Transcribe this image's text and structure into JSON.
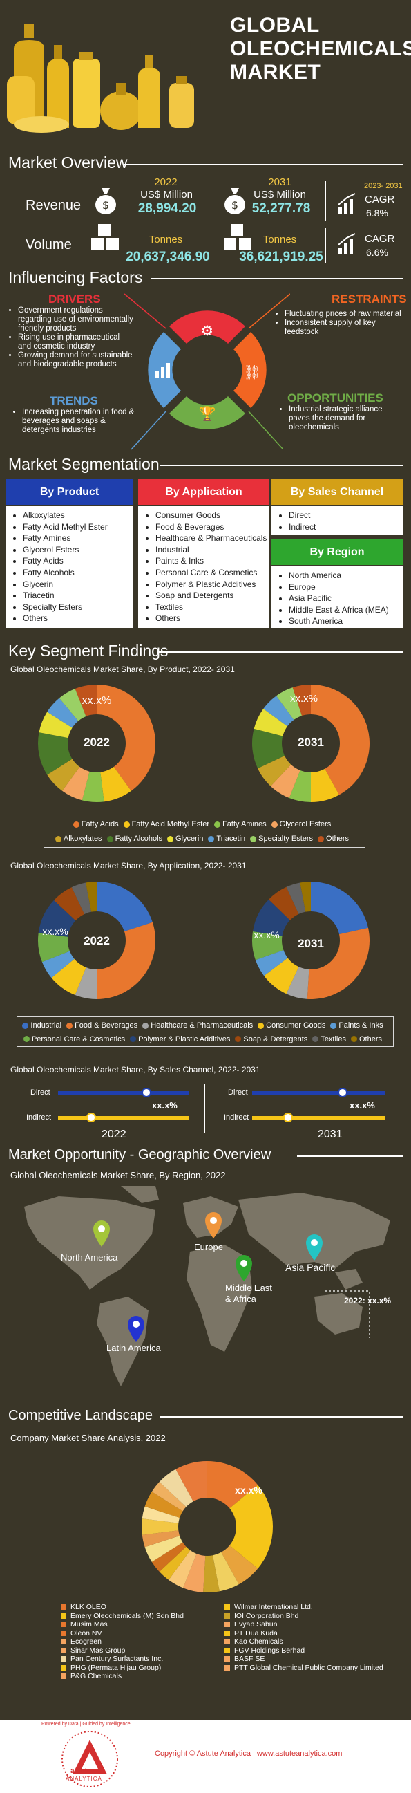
{
  "header": {
    "title_l1": "GLOBAL",
    "title_l2": "OLEOCHEMICALS",
    "title_l3": "MARKET"
  },
  "overview": {
    "title": "Market Overview",
    "revenue": {
      "label": "Revenue",
      "y1": "2022",
      "u1": "US$ Million",
      "v1": "28,994.20",
      "y2": "2031",
      "u2": "US$ Million",
      "v2": "52,277.78",
      "cagr_period": "2023- 2031",
      "cagr_label": "CAGR",
      "cagr": "6.8%"
    },
    "volume": {
      "label": "Volume",
      "u1": "Tonnes",
      "v1": "20,637,346.90",
      "u2": "Tonnes",
      "v2": "36,621,919.25",
      "cagr_label": "CAGR",
      "cagr": "6.6%"
    }
  },
  "factors": {
    "title": "Influencing Factors",
    "drivers": {
      "h": "DRIVERS",
      "items": [
        "Government regulations regarding use of environmentally friendly products",
        "Rising use in pharmaceutical and cosmetic industry",
        "Growing demand for sustainable and biodegradable products"
      ]
    },
    "restraints": {
      "h": "RESTRAINTS",
      "items": [
        "Fluctuating prices of raw material",
        "Inconsistent supply of key feedstock"
      ]
    },
    "trends": {
      "h": "TRENDS",
      "items": [
        "Increasing penetration in food & beverages and soaps & detergents industries"
      ]
    },
    "opportunities": {
      "h": "OPPORTUNITIES",
      "items": [
        "Industrial strategic alliance paves the demand for oleochemicals"
      ]
    }
  },
  "segmentation": {
    "title": "Market Segmentation",
    "product": {
      "h": "By Product",
      "items": [
        "Alkoxylates",
        "Fatty Acid Methyl Ester",
        "Fatty Amines",
        "Glycerol Esters",
        "Fatty Acids",
        "Fatty Alcohols",
        "Glycerin",
        "Triacetin",
        "Specialty Esters",
        "Others"
      ]
    },
    "application": {
      "h": "By Application",
      "items": [
        "Consumer Goods",
        "Food & Beverages",
        "Healthcare & Pharmaceuticals",
        "Industrial",
        "Paints & Inks",
        "Personal Care & Cosmetics",
        "Polymer & Plastic Additives",
        "Soap and Detergents",
        "Textiles",
        "Others"
      ]
    },
    "channel": {
      "h": "By Sales Channel",
      "items": [
        "Direct",
        "Indirect"
      ]
    },
    "region": {
      "h": "By Region",
      "items": [
        "North America",
        "Europe",
        "Asia Pacific",
        "Middle East & Africa (MEA)",
        "South America"
      ]
    }
  },
  "findings": {
    "title": "Key Segment Findings",
    "product_sub": "Global Oleochemicals Market Share, By Product, 2022- 2031",
    "product_ph": "xx.x%",
    "y2022": "2022",
    "y2031": "2031",
    "product_legend": [
      "Fatty Acids",
      "Fatty Acid Methyl Ester",
      "Fatty Amines",
      "Glycerol Esters",
      "Alkoxylates",
      "Fatty Alcohols",
      "Glycerin",
      "Triacetin",
      "Specialty Esters",
      "Others"
    ],
    "product_colors": [
      "#e8772e",
      "#f5c518",
      "#8bc34a",
      "#f4a460",
      "#c9a227",
      "#4a7a2a",
      "#e8e034",
      "#5b9bd5",
      "#9ad065",
      "#c0541c"
    ],
    "app_sub": "Global Oleochemicals Market Share, By Application, 2022- 2031",
    "app_ph": "xx.x%",
    "app_legend": [
      "Industrial",
      "Food & Beverages",
      "Healthcare & Pharmaceuticals",
      "Consumer Goods",
      "Paints & Inks",
      "Personal Care & Cosmetics",
      "Polymer & Plastic Additives",
      "Soap & Detergents",
      "Textiles",
      "Others"
    ],
    "app_colors": [
      "#3a6fc4",
      "#e8772e",
      "#a5a5a5",
      "#f5c518",
      "#5b9bd5",
      "#70ad47",
      "#264478",
      "#9e480e",
      "#636363",
      "#997300"
    ],
    "channel_sub": "Global Oleochemicals Market Share, By Sales Channel, 2022- 2031",
    "channel_direct": "Direct",
    "channel_indirect": "Indirect",
    "channel_ph": "xx.x%"
  },
  "geo": {
    "title": "Market Opportunity - Geographic Overview",
    "sub": "Global Oleochemicals Market Share, By Region, 2022",
    "na": "North America",
    "eu": "Europe",
    "mea_1": "Middle East",
    "mea_2": "& Africa",
    "ap": "Asia Pacific",
    "la": "Latin America",
    "ap_value": "2022: xx.x%"
  },
  "competitive": {
    "title": "Competitive Landscape",
    "sub": "Company Market Share Analysis, 2022",
    "ph": "xx.x%",
    "left": [
      "KLK OLEO",
      "Emery Oleochemicals (M) Sdn Bhd",
      "Musim Mas",
      "Oleon NV",
      "Ecogreen",
      "Sinar Mas Group",
      "Pan Century Surfactants Inc.",
      "PHG (Permata Hijau Group)",
      "P&G Chemicals"
    ],
    "right": [
      "Wilmar International Ltd.",
      "IOI Corporation Bhd",
      "Evyap Sabun",
      "PT Dua Kuda",
      "Kao Chemicals",
      "FGV Holdings Berhad",
      "BASF SE",
      "PTT Global Chemical Public Company Limited"
    ],
    "left_colors": [
      "#e8772e",
      "#f5c518",
      "#e8772e",
      "#e8772e",
      "#f4a460",
      "#f4a460",
      "#f0d9a0",
      "#f5c518",
      "#f4a460"
    ],
    "right_colors": [
      "#f5c518",
      "#c9a227",
      "#f4a460",
      "#f5c518",
      "#f4a460",
      "#f5c518",
      "#f4a460",
      "#f4a460"
    ]
  },
  "footer": {
    "copyright": "Copyright © Astute Analytica  |  www.astuteanalytica.com",
    "brand_1": "astute",
    "brand_2": "ANALYTICA",
    "tag": "Powered by Data | Guided by Intelligence"
  }
}
